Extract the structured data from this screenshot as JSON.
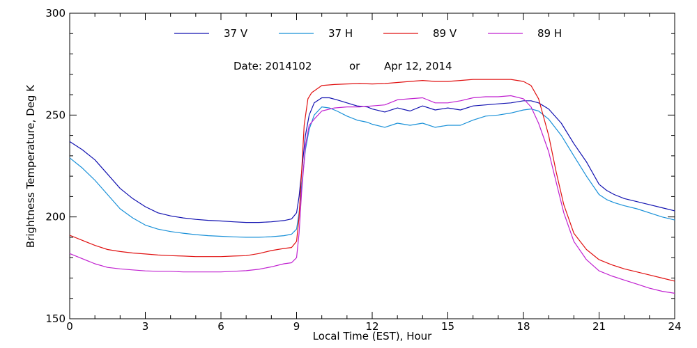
{
  "chart_data": {
    "type": "line",
    "xlabel": "Local Time (EST), Hour",
    "ylabel": "Brightness Temperature, Deg K",
    "xlim": [
      0,
      24
    ],
    "ylim": [
      150,
      300
    ],
    "x_ticks": [
      "0",
      "3",
      "6",
      "9",
      "12",
      "15",
      "18",
      "21",
      "24"
    ],
    "y_ticks": [
      "150",
      "200",
      "250",
      "300"
    ],
    "grid": false,
    "legend_position": "top",
    "annotation": {
      "date_label": "Date: 2014102",
      "or_label": "or",
      "date_text": "Apr 12, 2014"
    },
    "series": [
      {
        "name": "37 V",
        "color": "#1010b0",
        "points": [
          [
            0,
            237
          ],
          [
            0.5,
            233
          ],
          [
            1,
            228
          ],
          [
            1.5,
            221
          ],
          [
            2,
            214
          ],
          [
            2.5,
            209
          ],
          [
            3,
            205
          ],
          [
            3.5,
            202
          ],
          [
            4,
            200.5
          ],
          [
            4.5,
            199.5
          ],
          [
            5,
            198.8
          ],
          [
            5.5,
            198.3
          ],
          [
            6,
            198
          ],
          [
            6.5,
            197.6
          ],
          [
            7,
            197.3
          ],
          [
            7.5,
            197.3
          ],
          [
            8,
            197.6
          ],
          [
            8.5,
            198.2
          ],
          [
            8.8,
            199
          ],
          [
            9,
            202
          ],
          [
            9.1,
            210
          ],
          [
            9.2,
            222
          ],
          [
            9.35,
            240
          ],
          [
            9.5,
            250
          ],
          [
            9.7,
            256
          ],
          [
            10,
            258.5
          ],
          [
            10.3,
            258.5
          ],
          [
            10.6,
            257.5
          ],
          [
            11,
            256
          ],
          [
            11.4,
            254.5
          ],
          [
            11.8,
            254
          ],
          [
            12,
            253
          ],
          [
            12.5,
            251.5
          ],
          [
            13,
            253.5
          ],
          [
            13.5,
            252
          ],
          [
            14,
            254.5
          ],
          [
            14.5,
            252.5
          ],
          [
            15,
            253.5
          ],
          [
            15.5,
            252.5
          ],
          [
            16,
            254.5
          ],
          [
            16.5,
            255
          ],
          [
            17,
            255.5
          ],
          [
            17.5,
            256
          ],
          [
            18,
            257
          ],
          [
            18.3,
            257
          ],
          [
            18.6,
            256
          ],
          [
            19,
            253
          ],
          [
            19.5,
            246
          ],
          [
            20,
            236
          ],
          [
            20.5,
            227
          ],
          [
            21,
            216
          ],
          [
            21.3,
            213
          ],
          [
            21.6,
            211
          ],
          [
            22,
            209
          ],
          [
            22.5,
            207.5
          ],
          [
            23,
            206
          ],
          [
            23.5,
            204.5
          ],
          [
            24,
            203
          ]
        ]
      },
      {
        "name": "37 H",
        "color": "#1890d8",
        "points": [
          [
            0,
            229
          ],
          [
            0.5,
            224
          ],
          [
            1,
            218
          ],
          [
            1.5,
            211
          ],
          [
            2,
            204
          ],
          [
            2.5,
            199.5
          ],
          [
            3,
            196
          ],
          [
            3.5,
            194
          ],
          [
            4,
            192.8
          ],
          [
            4.5,
            192
          ],
          [
            5,
            191.3
          ],
          [
            5.5,
            190.8
          ],
          [
            6,
            190.5
          ],
          [
            6.5,
            190.2
          ],
          [
            7,
            190
          ],
          [
            7.5,
            190
          ],
          [
            8,
            190.3
          ],
          [
            8.5,
            190.8
          ],
          [
            8.8,
            191.5
          ],
          [
            9,
            194
          ],
          [
            9.1,
            202
          ],
          [
            9.2,
            215
          ],
          [
            9.35,
            233
          ],
          [
            9.5,
            243
          ],
          [
            9.7,
            250
          ],
          [
            10,
            254
          ],
          [
            10.3,
            253.5
          ],
          [
            10.6,
            252
          ],
          [
            11,
            249.5
          ],
          [
            11.4,
            247.5
          ],
          [
            11.8,
            246.5
          ],
          [
            12,
            245.5
          ],
          [
            12.5,
            244
          ],
          [
            13,
            246
          ],
          [
            13.5,
            245
          ],
          [
            14,
            246
          ],
          [
            14.5,
            244
          ],
          [
            15,
            245
          ],
          [
            15.5,
            245
          ],
          [
            16,
            247.5
          ],
          [
            16.5,
            249.5
          ],
          [
            17,
            250
          ],
          [
            17.5,
            251
          ],
          [
            18,
            252.5
          ],
          [
            18.3,
            253
          ],
          [
            18.6,
            252
          ],
          [
            19,
            248
          ],
          [
            19.5,
            240
          ],
          [
            20,
            230
          ],
          [
            20.5,
            220
          ],
          [
            21,
            211
          ],
          [
            21.3,
            208.5
          ],
          [
            21.6,
            207
          ],
          [
            22,
            205.5
          ],
          [
            22.5,
            204
          ],
          [
            23,
            202
          ],
          [
            23.5,
            200
          ],
          [
            24,
            198.5
          ]
        ]
      },
      {
        "name": "89 V",
        "color": "#e01010",
        "points": [
          [
            0,
            191
          ],
          [
            0.5,
            188.5
          ],
          [
            1,
            186
          ],
          [
            1.5,
            184
          ],
          [
            2,
            183
          ],
          [
            2.5,
            182.3
          ],
          [
            3,
            181.8
          ],
          [
            3.5,
            181.3
          ],
          [
            4,
            181
          ],
          [
            4.5,
            180.8
          ],
          [
            5,
            180.5
          ],
          [
            5.5,
            180.5
          ],
          [
            6,
            180.5
          ],
          [
            6.5,
            180.8
          ],
          [
            7,
            181
          ],
          [
            7.5,
            182
          ],
          [
            8,
            183.5
          ],
          [
            8.5,
            184.5
          ],
          [
            8.8,
            185
          ],
          [
            9,
            188
          ],
          [
            9.1,
            200
          ],
          [
            9.2,
            222
          ],
          [
            9.3,
            245
          ],
          [
            9.45,
            258
          ],
          [
            9.6,
            261
          ],
          [
            10,
            264.5
          ],
          [
            10.5,
            265
          ],
          [
            11,
            265.3
          ],
          [
            11.5,
            265.5
          ],
          [
            12,
            265.3
          ],
          [
            12.5,
            265.5
          ],
          [
            13,
            266
          ],
          [
            13.5,
            266.5
          ],
          [
            14,
            267
          ],
          [
            14.5,
            266.5
          ],
          [
            15,
            266.5
          ],
          [
            15.5,
            267
          ],
          [
            16,
            267.5
          ],
          [
            16.5,
            267.5
          ],
          [
            17,
            267.5
          ],
          [
            17.5,
            267.5
          ],
          [
            18,
            266.5
          ],
          [
            18.3,
            264.5
          ],
          [
            18.6,
            258
          ],
          [
            19,
            240
          ],
          [
            19.3,
            222
          ],
          [
            19.6,
            206
          ],
          [
            20,
            192
          ],
          [
            20.5,
            184
          ],
          [
            21,
            179
          ],
          [
            21.5,
            176.5
          ],
          [
            22,
            174.5
          ],
          [
            22.5,
            173
          ],
          [
            23,
            171.5
          ],
          [
            23.5,
            170
          ],
          [
            24,
            168.5
          ]
        ]
      },
      {
        "name": "89 H",
        "color": "#c020d0",
        "points": [
          [
            0,
            182
          ],
          [
            0.5,
            179.5
          ],
          [
            1,
            177
          ],
          [
            1.5,
            175.2
          ],
          [
            2,
            174.5
          ],
          [
            2.5,
            174
          ],
          [
            3,
            173.5
          ],
          [
            3.5,
            173.3
          ],
          [
            4,
            173.3
          ],
          [
            4.5,
            173
          ],
          [
            5,
            173
          ],
          [
            5.5,
            173
          ],
          [
            6,
            173
          ],
          [
            6.5,
            173.3
          ],
          [
            7,
            173.6
          ],
          [
            7.5,
            174.3
          ],
          [
            8,
            175.5
          ],
          [
            8.5,
            177
          ],
          [
            8.8,
            177.5
          ],
          [
            9,
            180
          ],
          [
            9.1,
            192
          ],
          [
            9.2,
            212
          ],
          [
            9.35,
            235
          ],
          [
            9.5,
            245
          ],
          [
            9.7,
            248
          ],
          [
            10,
            252
          ],
          [
            10.5,
            253.5
          ],
          [
            11,
            254
          ],
          [
            11.5,
            254
          ],
          [
            12,
            254.5
          ],
          [
            12.5,
            255
          ],
          [
            13,
            257.5
          ],
          [
            13.5,
            258
          ],
          [
            14,
            258.5
          ],
          [
            14.5,
            256
          ],
          [
            15,
            256
          ],
          [
            15.5,
            257
          ],
          [
            16,
            258.5
          ],
          [
            16.5,
            259
          ],
          [
            17,
            259
          ],
          [
            17.5,
            259.5
          ],
          [
            18,
            258
          ],
          [
            18.3,
            254
          ],
          [
            18.6,
            246
          ],
          [
            19,
            232
          ],
          [
            19.3,
            217
          ],
          [
            19.6,
            202
          ],
          [
            20,
            188
          ],
          [
            20.5,
            179
          ],
          [
            21,
            173.5
          ],
          [
            21.5,
            171
          ],
          [
            22,
            169
          ],
          [
            22.5,
            167
          ],
          [
            23,
            165
          ],
          [
            23.5,
            163.5
          ],
          [
            24,
            162.5
          ]
        ]
      }
    ]
  }
}
